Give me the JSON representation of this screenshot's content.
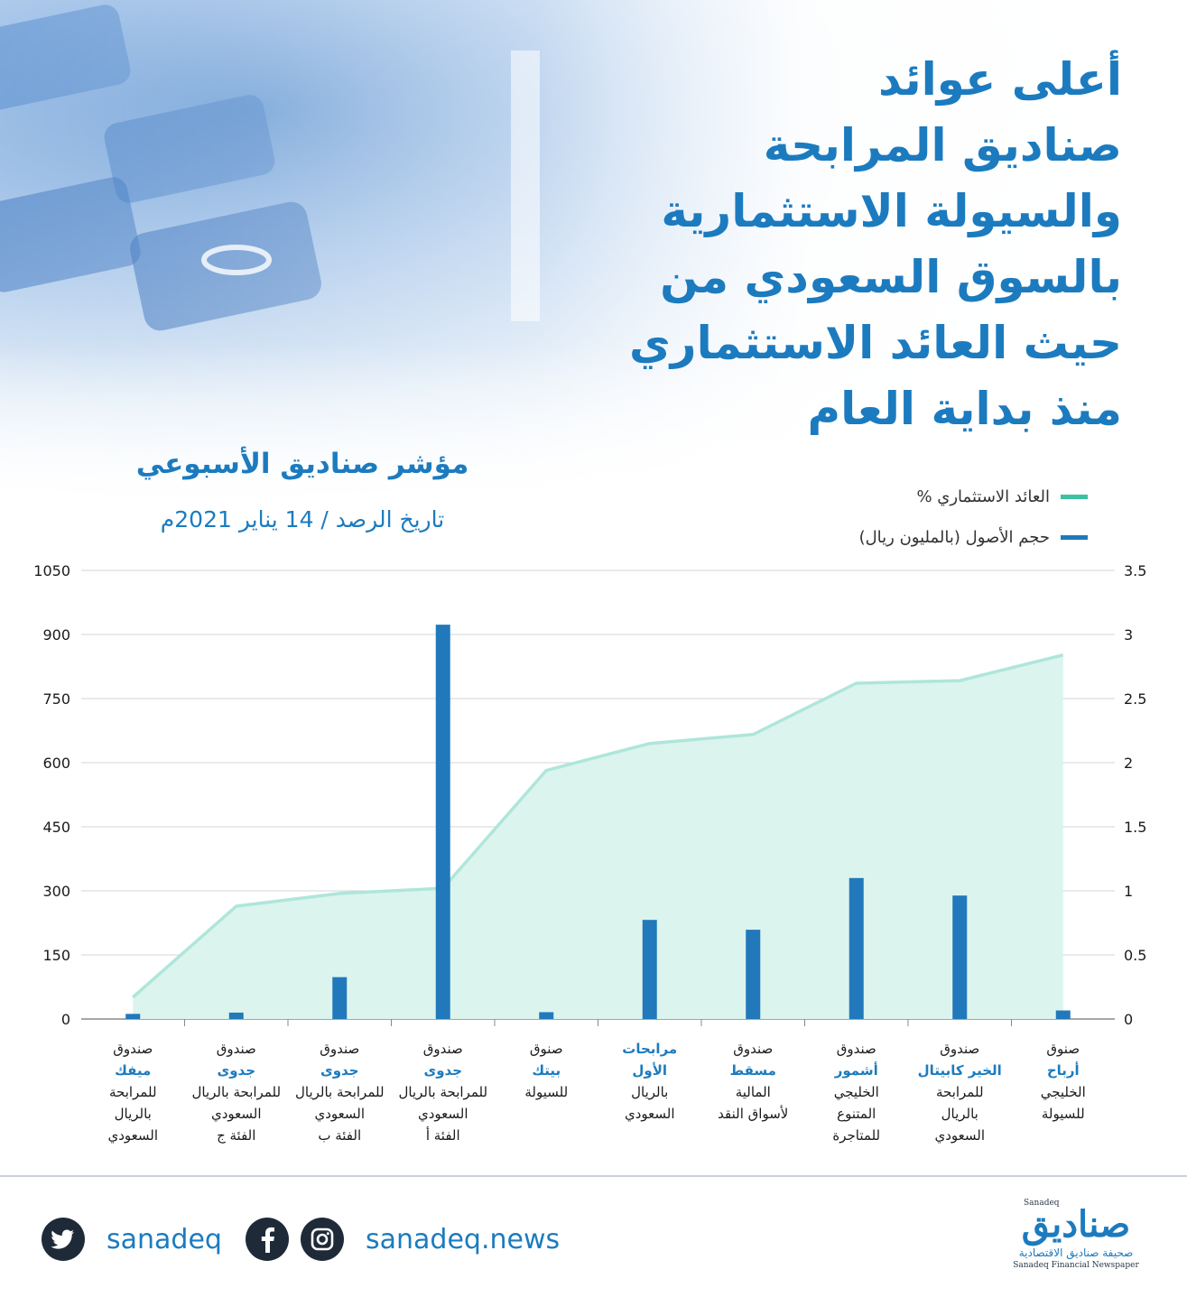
{
  "title_lines": [
    "أعلى عوائد",
    "صناديق المرابحة",
    "والسيولة الاستثمارية",
    "بالسوق السعودي من",
    "حيث العائد الاستثماري",
    "منذ بداية العام"
  ],
  "subtitle": "مؤشر صناديق الأسبوعي",
  "date": "تاريخ الرصد / 14 يناير 2021م",
  "legend": {
    "line": "العائد الاستثماري %",
    "bar": "حجم الأصول (بالمليون ريال)"
  },
  "colors": {
    "accent": "#1c7bbf",
    "bar": "#2179bb",
    "line": "#aee6da",
    "area": "#dcf4ee",
    "text": "#1a1a1a"
  },
  "chart_data": {
    "type": "bar",
    "left_axis": {
      "min": 0,
      "max": 1050,
      "ticks": [
        "0",
        "150",
        "300",
        "450",
        "600",
        "750",
        "900",
        "1050"
      ]
    },
    "right_axis": {
      "min": 0,
      "max": 3.5,
      "ticks": [
        "0",
        "0.5",
        "1",
        "1.5",
        "2",
        "2.5",
        "3",
        "3.5"
      ]
    },
    "grid": true,
    "legend_position": "top-right",
    "categories": [
      {
        "lines": [
          {
            "t": "صندوق",
            "b": false
          },
          {
            "t": "ميفك",
            "b": true
          },
          {
            "t": "للمرابحة",
            "b": false
          },
          {
            "t": "بالريال",
            "b": false
          },
          {
            "t": "السعودي",
            "b": false
          }
        ]
      },
      {
        "lines": [
          {
            "t": "صندوق",
            "b": false
          },
          {
            "t": "جدوى",
            "b": true
          },
          {
            "t": "للمرابحة بالريال",
            "b": false
          },
          {
            "t": "السعودي",
            "b": false
          },
          {
            "t": "الفئة ج",
            "b": false
          }
        ]
      },
      {
        "lines": [
          {
            "t": "صندوق",
            "b": false
          },
          {
            "t": "جدوى",
            "b": true
          },
          {
            "t": "للمرابحة بالريال",
            "b": false
          },
          {
            "t": "السعودي",
            "b": false
          },
          {
            "t": "الفئة ب",
            "b": false
          }
        ]
      },
      {
        "lines": [
          {
            "t": "صندوق",
            "b": false
          },
          {
            "t": "جدوى",
            "b": true
          },
          {
            "t": "للمرابحة بالريال",
            "b": false
          },
          {
            "t": "السعودي",
            "b": false
          },
          {
            "t": "الفئة أ",
            "b": false
          }
        ]
      },
      {
        "lines": [
          {
            "t": "صنوق",
            "b": false
          },
          {
            "t": "بيتك",
            "b": true
          },
          {
            "t": "للسيولة",
            "b": false
          }
        ]
      },
      {
        "lines": [
          {
            "t": "مرابحات",
            "b": true
          },
          {
            "t": "الأول",
            "b": true
          },
          {
            "t": "بالريال",
            "b": false
          },
          {
            "t": "السعودي",
            "b": false
          }
        ]
      },
      {
        "lines": [
          {
            "t": "صندوق",
            "b": false
          },
          {
            "t": "مسقط",
            "b": true
          },
          {
            "t": "المالية",
            "b": false
          },
          {
            "t": "لأسواق النقد",
            "b": false
          }
        ]
      },
      {
        "lines": [
          {
            "t": "صندوق",
            "b": false
          },
          {
            "t": "أشمور",
            "b": true
          },
          {
            "t": "الخليجي",
            "b": false
          },
          {
            "t": "المتنوع",
            "b": false
          },
          {
            "t": "للمتاجرة",
            "b": false
          }
        ]
      },
      {
        "lines": [
          {
            "t": "صندوق",
            "b": false
          },
          {
            "t": "الخير كابيتال",
            "b": true
          },
          {
            "t": "للمرابحة",
            "b": false
          },
          {
            "t": "بالريال",
            "b": false
          },
          {
            "t": "السعودي",
            "b": false
          }
        ]
      },
      {
        "lines": [
          {
            "t": "صنوق",
            "b": false
          },
          {
            "t": "أرباح",
            "b": true
          },
          {
            "t": "الخليجي",
            "b": false
          },
          {
            "t": "للسيولة",
            "b": false
          }
        ]
      }
    ],
    "series": [
      {
        "name": "حجم الأصول (بالمليون ريال)",
        "type": "bar",
        "axis": "left",
        "values": [
          12,
          15,
          98,
          923,
          16,
          232,
          209,
          330,
          289,
          20
        ]
      },
      {
        "name": "العائد الاستثماري %",
        "type": "area",
        "axis": "right",
        "values": [
          0.17,
          0.88,
          0.98,
          1.02,
          1.94,
          2.15,
          2.22,
          2.62,
          2.64,
          2.84
        ]
      }
    ]
  },
  "social": {
    "twitter_handle": "sanadeq",
    "site": "sanadeq.news",
    "twitter_icon": "twitter-icon",
    "facebook_icon": "facebook-icon",
    "instagram_icon": "instagram-icon"
  },
  "logo": {
    "ar": "صناديق",
    "en_mark": "Sanadeq",
    "tagline_ar": "صحيفة صناديق الاقتصادية",
    "tagline_en": "Sanadeq Financial Newspaper"
  }
}
